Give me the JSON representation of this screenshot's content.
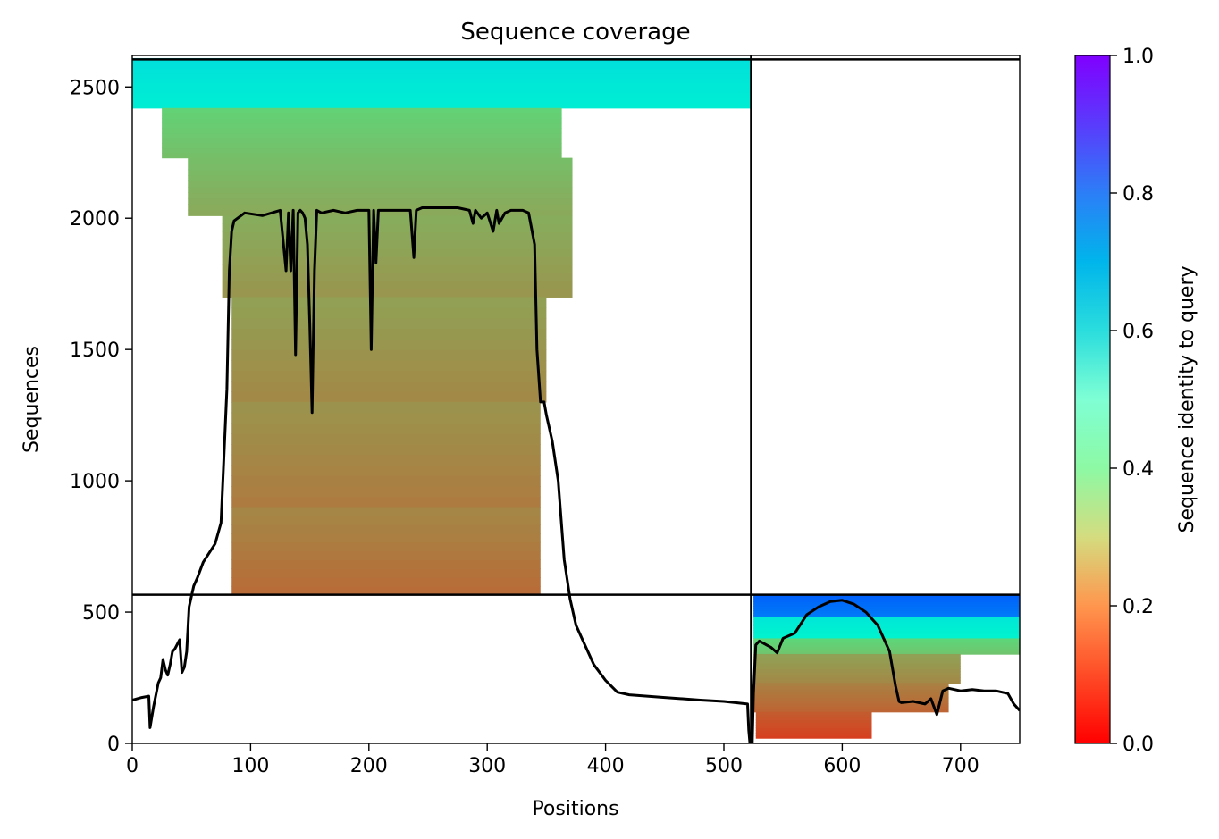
{
  "chart_data": {
    "type": "heatmap",
    "title": "Sequence coverage",
    "xlabel": "Positions",
    "ylabel": "Sequences",
    "xlim": [
      0,
      750
    ],
    "ylim": [
      0,
      2620
    ],
    "xticks": [
      "0",
      "100",
      "200",
      "300",
      "400",
      "500",
      "600",
      "700"
    ],
    "yticks": [
      "0",
      "500",
      "1000",
      "1500",
      "2000",
      "2500"
    ],
    "colorbar": {
      "label": "Sequence identity to query",
      "range": [
        0,
        1
      ],
      "ticks": [
        "0.0",
        "0.2",
        "0.4",
        "0.6",
        "0.8",
        "1.0"
      ],
      "colormap": "rainbow_r"
    },
    "chain_boundaries": {
      "x_break": 523,
      "y_break": 566
    },
    "blocks": [
      {
        "name": "chain-1",
        "x_range": [
          0,
          523
        ],
        "rows": [
          {
            "y0": 2420,
            "y1": 2610,
            "x0": 0,
            "x1": 523,
            "identity": 0.64
          },
          {
            "y0": 2230,
            "y1": 2420,
            "x0": 25,
            "x1": 363,
            "identity": 0.29
          },
          {
            "y0": 2010,
            "y1": 2230,
            "x0": 47,
            "x1": 372,
            "identity": 0.25
          },
          {
            "y0": 1700,
            "y1": 2010,
            "x0": 76,
            "x1": 372,
            "identity": 0.22
          },
          {
            "y0": 1300,
            "y1": 1700,
            "x0": 84,
            "x1": 350,
            "identity": 0.2
          },
          {
            "y0": 900,
            "y1": 1300,
            "x0": 84,
            "x1": 345,
            "identity": 0.18
          },
          {
            "y0": 566,
            "y1": 900,
            "x0": 84,
            "x1": 345,
            "identity": 0.16
          }
        ]
      },
      {
        "name": "chain-2",
        "x_range": [
          523,
          750
        ],
        "rows": [
          {
            "y0": 480,
            "y1": 566,
            "x0": 525,
            "x1": 750,
            "identity": 0.86
          },
          {
            "y0": 400,
            "y1": 480,
            "x0": 525,
            "x1": 750,
            "identity": 0.62
          },
          {
            "y0": 340,
            "y1": 400,
            "x0": 525,
            "x1": 750,
            "identity": 0.3
          },
          {
            "y0": 230,
            "y1": 340,
            "x0": 525,
            "x1": 700,
            "identity": 0.2
          },
          {
            "y0": 120,
            "y1": 230,
            "x0": 525,
            "x1": 690,
            "identity": 0.15
          },
          {
            "y0": 20,
            "y1": 120,
            "x0": 527,
            "x1": 625,
            "identity": 0.1
          }
        ]
      }
    ],
    "coverage_line": {
      "x": [
        0,
        8,
        14,
        15,
        18,
        22,
        24,
        26,
        28,
        30,
        32,
        34,
        36,
        40,
        42,
        44,
        46,
        48,
        50,
        52,
        55,
        60,
        70,
        75,
        80,
        82,
        84,
        86,
        95,
        110,
        125,
        130,
        132,
        134,
        136,
        138,
        140,
        142,
        144,
        146,
        148,
        150,
        152,
        154,
        156,
        160,
        170,
        180,
        190,
        200,
        202,
        204,
        206,
        208,
        220,
        230,
        235,
        238,
        240,
        245,
        260,
        275,
        285,
        288,
        290,
        295,
        300,
        305,
        308,
        310,
        315,
        320,
        330,
        335,
        340,
        342,
        345,
        348,
        350,
        355,
        360,
        365,
        370,
        375,
        380,
        390,
        400,
        410,
        420,
        450,
        480,
        500,
        520,
        521,
        522,
        524,
        525,
        527,
        530,
        540,
        545,
        550,
        560,
        570,
        580,
        590,
        600,
        610,
        620,
        630,
        640,
        645,
        648,
        650,
        660,
        670,
        675,
        680,
        685,
        690,
        700,
        710,
        720,
        730,
        740,
        745,
        750
      ],
      "y": [
        165,
        175,
        180,
        60,
        140,
        230,
        250,
        320,
        280,
        260,
        300,
        350,
        360,
        395,
        270,
        290,
        350,
        520,
        560,
        600,
        630,
        690,
        760,
        840,
        1350,
        1800,
        1950,
        1990,
        2020,
        2010,
        2030,
        1800,
        2020,
        1800,
        2030,
        1480,
        2020,
        2030,
        2020,
        2000,
        1900,
        1600,
        1260,
        1800,
        2030,
        2020,
        2030,
        2020,
        2030,
        2030,
        1500,
        2030,
        1830,
        2030,
        2030,
        2030,
        2030,
        1850,
        2030,
        2040,
        2040,
        2040,
        2030,
        1980,
        2030,
        2000,
        2020,
        1950,
        2030,
        1980,
        2020,
        2030,
        2030,
        2020,
        1900,
        1500,
        1300,
        1300,
        1250,
        1150,
        1000,
        700,
        550,
        450,
        400,
        300,
        240,
        195,
        185,
        175,
        165,
        160,
        150,
        50,
        0,
        0,
        190,
        375,
        390,
        365,
        345,
        400,
        420,
        490,
        520,
        540,
        545,
        530,
        500,
        450,
        350,
        220,
        160,
        155,
        160,
        150,
        170,
        110,
        200,
        210,
        200,
        205,
        200,
        200,
        190,
        150,
        125
      ]
    }
  }
}
